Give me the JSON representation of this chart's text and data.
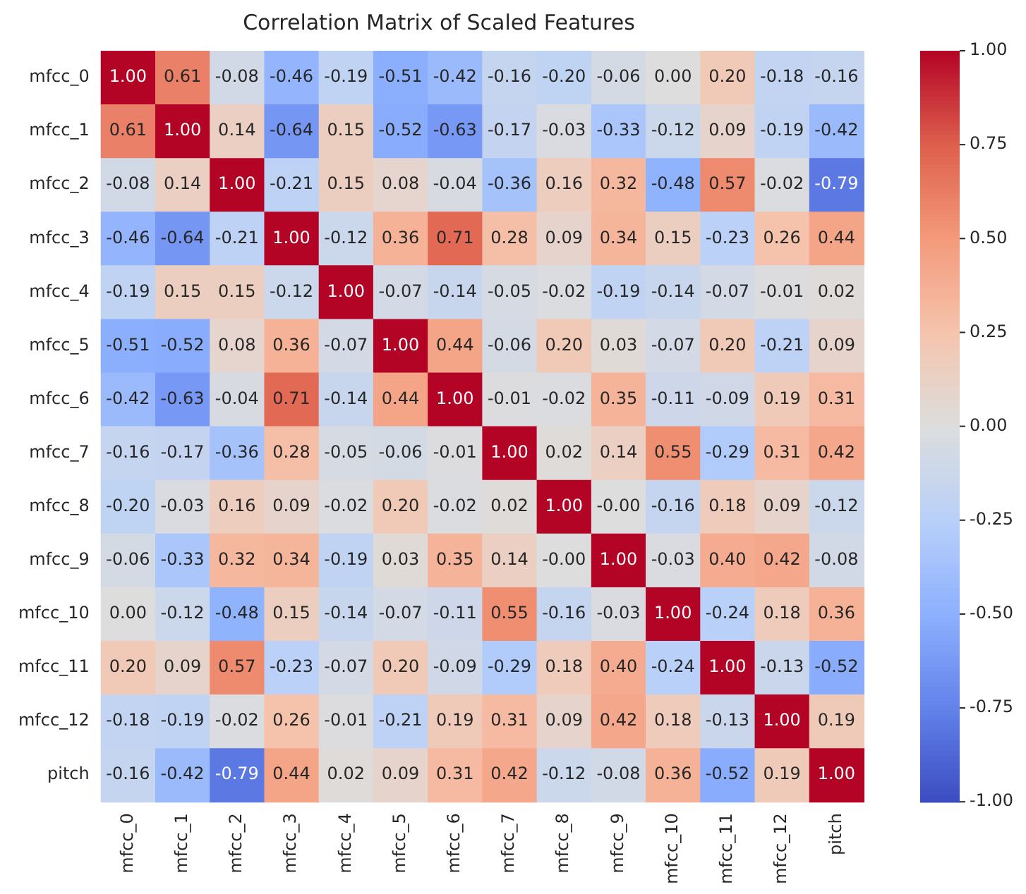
{
  "chart_data": {
    "type": "heatmap",
    "title": "Correlation Matrix of Scaled Features",
    "categories": [
      "mfcc_0",
      "mfcc_1",
      "mfcc_2",
      "mfcc_3",
      "mfcc_4",
      "mfcc_5",
      "mfcc_6",
      "mfcc_7",
      "mfcc_8",
      "mfcc_9",
      "mfcc_10",
      "mfcc_11",
      "mfcc_12",
      "pitch"
    ],
    "y_categories": [
      "mfcc_0",
      "mfcc_1",
      "mfcc_2",
      "mfcc_3",
      "mfcc_4",
      "mfcc_5",
      "mfcc_6",
      "mfcc_7",
      "mfcc_8",
      "mfcc_9",
      "mfcc_10",
      "mfcc_11",
      "mfcc_12",
      "pitch"
    ],
    "cells": [
      [
        1.0,
        0.61,
        -0.08,
        -0.46,
        -0.19,
        -0.51,
        -0.42,
        -0.16,
        -0.2,
        -0.06,
        0.0,
        0.2,
        -0.18,
        -0.16
      ],
      [
        0.61,
        1.0,
        0.14,
        -0.64,
        0.15,
        -0.52,
        -0.63,
        -0.17,
        -0.03,
        -0.33,
        -0.12,
        0.09,
        -0.19,
        -0.42
      ],
      [
        -0.08,
        0.14,
        1.0,
        -0.21,
        0.15,
        0.08,
        -0.04,
        -0.36,
        0.16,
        0.32,
        -0.48,
        0.57,
        -0.02,
        -0.79
      ],
      [
        -0.46,
        -0.64,
        -0.21,
        1.0,
        -0.12,
        0.36,
        0.71,
        0.28,
        0.09,
        0.34,
        0.15,
        -0.23,
        0.26,
        0.44
      ],
      [
        -0.19,
        0.15,
        0.15,
        -0.12,
        1.0,
        -0.07,
        -0.14,
        -0.05,
        -0.02,
        -0.19,
        -0.14,
        -0.07,
        -0.01,
        0.02
      ],
      [
        -0.51,
        -0.52,
        0.08,
        0.36,
        -0.07,
        1.0,
        0.44,
        -0.06,
        0.2,
        0.03,
        -0.07,
        0.2,
        -0.21,
        0.09
      ],
      [
        -0.42,
        -0.63,
        -0.04,
        0.71,
        -0.14,
        0.44,
        1.0,
        -0.01,
        -0.02,
        0.35,
        -0.11,
        -0.09,
        0.19,
        0.31
      ],
      [
        -0.16,
        -0.17,
        -0.36,
        0.28,
        -0.05,
        -0.06,
        -0.01,
        1.0,
        0.02,
        0.14,
        0.55,
        -0.29,
        0.31,
        0.42
      ],
      [
        -0.2,
        -0.03,
        0.16,
        0.09,
        -0.02,
        0.2,
        -0.02,
        0.02,
        1.0,
        0.0,
        -0.16,
        0.18,
        0.09,
        -0.12
      ],
      [
        -0.06,
        -0.33,
        0.32,
        0.34,
        -0.19,
        0.03,
        0.35,
        0.14,
        0.0,
        1.0,
        -0.03,
        0.4,
        0.42,
        -0.08
      ],
      [
        0.0,
        -0.12,
        -0.48,
        0.15,
        -0.14,
        -0.07,
        -0.11,
        0.55,
        -0.16,
        -0.03,
        1.0,
        -0.24,
        0.18,
        0.36
      ],
      [
        0.2,
        0.09,
        0.57,
        -0.23,
        -0.07,
        0.2,
        -0.09,
        -0.29,
        0.18,
        0.4,
        -0.24,
        1.0,
        -0.13,
        -0.52
      ],
      [
        -0.18,
        -0.19,
        -0.02,
        0.26,
        -0.01,
        -0.21,
        0.19,
        0.31,
        0.09,
        0.42,
        0.18,
        -0.13,
        1.0,
        0.19
      ],
      [
        -0.16,
        -0.42,
        -0.79,
        0.44,
        0.02,
        0.09,
        0.31,
        0.42,
        -0.12,
        -0.08,
        0.36,
        -0.52,
        0.19,
        1.0
      ]
    ],
    "cell_labels": [
      [
        "1.00",
        "0.61",
        "-0.08",
        "-0.46",
        "-0.19",
        "-0.51",
        "-0.42",
        "-0.16",
        "-0.20",
        "-0.06",
        "0.00",
        "0.20",
        "-0.18",
        "-0.16"
      ],
      [
        "0.61",
        "1.00",
        "0.14",
        "-0.64",
        "0.15",
        "-0.52",
        "-0.63",
        "-0.17",
        "-0.03",
        "-0.33",
        "-0.12",
        "0.09",
        "-0.19",
        "-0.42"
      ],
      [
        "-0.08",
        "0.14",
        "1.00",
        "-0.21",
        "0.15",
        "0.08",
        "-0.04",
        "-0.36",
        "0.16",
        "0.32",
        "-0.48",
        "0.57",
        "-0.02",
        "-0.79"
      ],
      [
        "-0.46",
        "-0.64",
        "-0.21",
        "1.00",
        "-0.12",
        "0.36",
        "0.71",
        "0.28",
        "0.09",
        "0.34",
        "0.15",
        "-0.23",
        "0.26",
        "0.44"
      ],
      [
        "-0.19",
        "0.15",
        "0.15",
        "-0.12",
        "1.00",
        "-0.07",
        "-0.14",
        "-0.05",
        "-0.02",
        "-0.19",
        "-0.14",
        "-0.07",
        "-0.01",
        "0.02"
      ],
      [
        "-0.51",
        "-0.52",
        "0.08",
        "0.36",
        "-0.07",
        "1.00",
        "0.44",
        "-0.06",
        "0.20",
        "0.03",
        "-0.07",
        "0.20",
        "-0.21",
        "0.09"
      ],
      [
        "-0.42",
        "-0.63",
        "-0.04",
        "0.71",
        "-0.14",
        "0.44",
        "1.00",
        "-0.01",
        "-0.02",
        "0.35",
        "-0.11",
        "-0.09",
        "0.19",
        "0.31"
      ],
      [
        "-0.16",
        "-0.17",
        "-0.36",
        "0.28",
        "-0.05",
        "-0.06",
        "-0.01",
        "1.00",
        "0.02",
        "0.14",
        "0.55",
        "-0.29",
        "0.31",
        "0.42"
      ],
      [
        "-0.20",
        "-0.03",
        "0.16",
        "0.09",
        "-0.02",
        "0.20",
        "-0.02",
        "0.02",
        "1.00",
        "-0.00",
        "-0.16",
        "0.18",
        "0.09",
        "-0.12"
      ],
      [
        "-0.06",
        "-0.33",
        "0.32",
        "0.34",
        "-0.19",
        "0.03",
        "0.35",
        "0.14",
        "-0.00",
        "1.00",
        "-0.03",
        "0.40",
        "0.42",
        "-0.08"
      ],
      [
        "0.00",
        "-0.12",
        "-0.48",
        "0.15",
        "-0.14",
        "-0.07",
        "-0.11",
        "0.55",
        "-0.16",
        "-0.03",
        "1.00",
        "-0.24",
        "0.18",
        "0.36"
      ],
      [
        "0.20",
        "0.09",
        "0.57",
        "-0.23",
        "-0.07",
        "0.20",
        "-0.09",
        "-0.29",
        "0.18",
        "0.40",
        "-0.24",
        "1.00",
        "-0.13",
        "-0.52"
      ],
      [
        "-0.18",
        "-0.19",
        "-0.02",
        "0.26",
        "-0.01",
        "-0.21",
        "0.19",
        "0.31",
        "0.09",
        "0.42",
        "0.18",
        "-0.13",
        "1.00",
        "0.19"
      ],
      [
        "-0.16",
        "-0.42",
        "-0.79",
        "0.44",
        "0.02",
        "0.09",
        "0.31",
        "0.42",
        "-0.12",
        "-0.08",
        "0.36",
        "-0.52",
        "0.19",
        "1.00"
      ]
    ],
    "data_labels": true,
    "clim": [
      -1.0,
      1.0
    ],
    "cticks": [
      {
        "value": -1,
        "label": "-1.00"
      },
      {
        "value": -0.75,
        "label": "-0.75"
      },
      {
        "value": -0.5,
        "label": "-0.50"
      },
      {
        "value": -0.25,
        "label": "-0.25"
      },
      {
        "value": 0,
        "label": "0.00"
      },
      {
        "value": 0.25,
        "label": "0.25"
      },
      {
        "value": 0.5,
        "label": "0.50"
      },
      {
        "value": 0.75,
        "label": "0.75"
      },
      {
        "value": 1,
        "label": "1.00"
      }
    ]
  }
}
